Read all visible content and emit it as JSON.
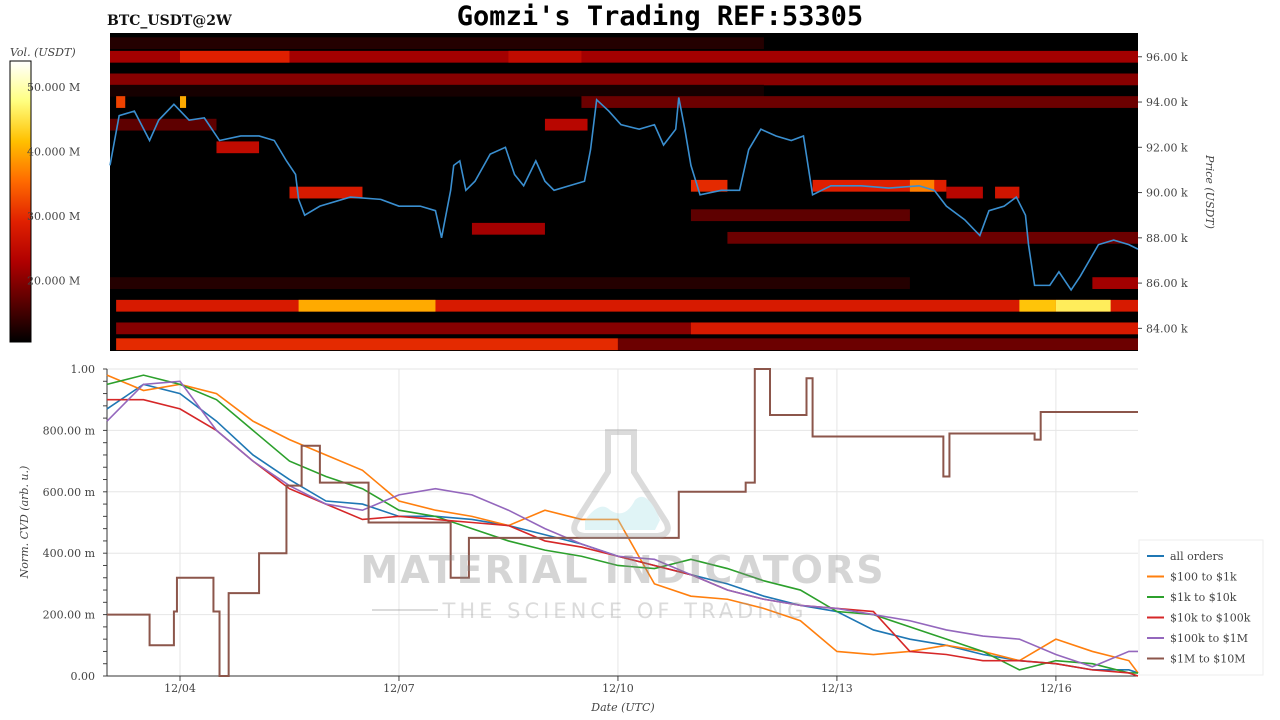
{
  "title": "Gomzi's Trading REF:53305",
  "symbol_label": "BTC_USDT@2W",
  "watermark": {
    "line1": "MATERIAL INDICATORS",
    "line2": "THE SCIENCE OF TRADING"
  },
  "chart_data": [
    {
      "type": "heatmap",
      "name": "orderbook-heatmap",
      "ylabel": "Price (USDT)",
      "ylim": [
        83.0,
        97.05
      ],
      "xlim": [
        "12/03 00:00",
        "12/17 03:00"
      ],
      "yticks": [
        84,
        86,
        88,
        90,
        92,
        94,
        96
      ],
      "ytick_labels": [
        "84.00 k",
        "86.00 k",
        "88.00 k",
        "90.00 k",
        "92.00 k",
        "94.00 k",
        "96.00 k"
      ],
      "background_color": "#000000",
      "colorbar": {
        "label": "Vol. (USDT)",
        "range": [
          10.5,
          54
        ],
        "ticks": [
          20,
          30,
          40,
          50
        ],
        "tick_labels": [
          "20.000 M",
          "30.000 M",
          "40.000 M",
          "50.000 M"
        ],
        "colormap": [
          "#000000",
          "#5a0000",
          "#b00000",
          "#e02000",
          "#ff6a00",
          "#ffc000",
          "#ffff80",
          "#ffffff"
        ]
      },
      "bands_unit": "price in k USDT, volume in M USDT",
      "bands": [
        {
          "price": 96.6,
          "from": "12/03 00:00",
          "to": "12/12 00:00",
          "vol": 13
        },
        {
          "price": 96.0,
          "from": "12/03 00:00",
          "to": "12/17 03:00",
          "vol": 22
        },
        {
          "price": 96.0,
          "from": "12/04 00:00",
          "to": "12/05 12:00",
          "vol": 29
        },
        {
          "price": 96.0,
          "from": "12/08 12:00",
          "to": "12/09 12:00",
          "vol": 25
        },
        {
          "price": 95.0,
          "from": "12/03 00:00",
          "to": "12/17 03:00",
          "vol": 20
        },
        {
          "price": 94.5,
          "from": "12/03 00:00",
          "to": "12/12 00:00",
          "vol": 12
        },
        {
          "price": 94.0,
          "from": "12/09 12:00",
          "to": "12/17 03:00",
          "vol": 18
        },
        {
          "price": 94.0,
          "from": "12/03 03:00",
          "to": "12/03 06:00",
          "vol": 32
        },
        {
          "price": 94.0,
          "from": "12/04 00:00",
          "to": "12/04 02:00",
          "vol": 40
        },
        {
          "price": 93.0,
          "from": "12/03 00:00",
          "to": "12/04 12:00",
          "vol": 17
        },
        {
          "price": 92.0,
          "from": "12/04 12:00",
          "to": "12/05 02:00",
          "vol": 25
        },
        {
          "price": 93.0,
          "from": "12/09 00:00",
          "to": "12/09 14:00",
          "vol": 24
        },
        {
          "price": 90.3,
          "from": "12/11 00:00",
          "to": "12/11 12:00",
          "vol": 30
        },
        {
          "price": 90.3,
          "from": "12/12 16:00",
          "to": "12/14 12:00",
          "vol": 29
        },
        {
          "price": 90.3,
          "from": "12/14 00:00",
          "to": "12/14 08:00",
          "vol": 37
        },
        {
          "price": 90.0,
          "from": "12/05 12:00",
          "to": "12/06 12:00",
          "vol": 28
        },
        {
          "price": 90.0,
          "from": "12/14 12:00",
          "to": "12/15 00:00",
          "vol": 24
        },
        {
          "price": 90.0,
          "from": "12/15 04:00",
          "to": "12/15 12:00",
          "vol": 27
        },
        {
          "price": 89.0,
          "from": "12/11 00:00",
          "to": "12/14 00:00",
          "vol": 17
        },
        {
          "price": 88.4,
          "from": "12/08 00:00",
          "to": "12/09 00:00",
          "vol": 22
        },
        {
          "price": 88.0,
          "from": "12/11 12:00",
          "to": "12/17 03:00",
          "vol": 18
        },
        {
          "price": 86.0,
          "from": "12/03 00:00",
          "to": "12/14 00:00",
          "vol": 13
        },
        {
          "price": 86.0,
          "from": "12/16 12:00",
          "to": "12/17 03:00",
          "vol": 22
        },
        {
          "price": 85.0,
          "from": "12/03 03:00",
          "to": "12/17 03:00",
          "vol": 28
        },
        {
          "price": 85.0,
          "from": "12/05 15:00",
          "to": "12/07 12:00",
          "vol": 40
        },
        {
          "price": 85.0,
          "from": "12/15 12:00",
          "to": "12/16 00:00",
          "vol": 42
        },
        {
          "price": 85.0,
          "from": "12/16 00:00",
          "to": "12/16 18:00",
          "vol": 46
        },
        {
          "price": 84.0,
          "from": "12/03 03:00",
          "to": "12/17 03:00",
          "vol": 20
        },
        {
          "price": 84.0,
          "from": "12/11 00:00",
          "to": "12/17 03:00",
          "vol": 28
        },
        {
          "price": 83.3,
          "from": "12/03 03:00",
          "to": "12/10 00:00",
          "vol": 30
        },
        {
          "price": 83.3,
          "from": "12/10 00:00",
          "to": "12/17 03:00",
          "vol": 18
        }
      ],
      "price_series": {
        "color": "#3a8fd0",
        "points": [
          [
            "12/03 00:00",
            91.2
          ],
          [
            "12/03 04:00",
            93.4
          ],
          [
            "12/03 09:00",
            93.6
          ],
          [
            "12/03 14:00",
            92.3
          ],
          [
            "12/03 17:00",
            93.2
          ],
          [
            "12/03 22:00",
            93.9
          ],
          [
            "12/04 03:00",
            93.2
          ],
          [
            "12/04 08:00",
            93.3
          ],
          [
            "12/04 13:00",
            92.3
          ],
          [
            "12/04 20:00",
            92.5
          ],
          [
            "12/05 02:00",
            92.5
          ],
          [
            "12/05 07:00",
            92.3
          ],
          [
            "12/05 11:00",
            91.4
          ],
          [
            "12/05 14:00",
            90.8
          ],
          [
            "12/05 15:00",
            89.7
          ],
          [
            "12/05 17:00",
            89.0
          ],
          [
            "12/05 22:00",
            89.4
          ],
          [
            "12/06 08:00",
            89.8
          ],
          [
            "12/06 18:00",
            89.7
          ],
          [
            "12/07 00:00",
            89.4
          ],
          [
            "12/07 07:00",
            89.4
          ],
          [
            "12/07 12:00",
            89.2
          ],
          [
            "12/07 14:00",
            88.0
          ],
          [
            "12/07 17:00",
            90.1
          ],
          [
            "12/07 18:00",
            91.2
          ],
          [
            "12/07 20:00",
            91.4
          ],
          [
            "12/07 22:00",
            90.1
          ],
          [
            "12/08 01:00",
            90.5
          ],
          [
            "12/08 06:00",
            91.7
          ],
          [
            "12/08 11:00",
            92.0
          ],
          [
            "12/08 14:00",
            90.8
          ],
          [
            "12/08 17:00",
            90.3
          ],
          [
            "12/08 21:00",
            91.4
          ],
          [
            "12/09 00:00",
            90.5
          ],
          [
            "12/09 03:00",
            90.1
          ],
          [
            "12/09 08:00",
            90.3
          ],
          [
            "12/09 13:00",
            90.5
          ],
          [
            "12/09 15:00",
            91.9
          ],
          [
            "12/09 17:00",
            94.1
          ],
          [
            "12/09 21:00",
            93.6
          ],
          [
            "12/10 01:00",
            93.0
          ],
          [
            "12/10 07:00",
            92.8
          ],
          [
            "12/10 12:00",
            93.0
          ],
          [
            "12/10 15:00",
            92.1
          ],
          [
            "12/10 19:00",
            92.8
          ],
          [
            "12/10 20:00",
            94.2
          ],
          [
            "12/10 22:00",
            92.8
          ],
          [
            "12/11 00:00",
            91.2
          ],
          [
            "12/11 03:00",
            89.9
          ],
          [
            "12/11 10:00",
            90.1
          ],
          [
            "12/11 16:00",
            90.1
          ],
          [
            "12/11 19:00",
            91.9
          ],
          [
            "12/11 23:00",
            92.8
          ],
          [
            "12/12 04:00",
            92.5
          ],
          [
            "12/12 09:00",
            92.3
          ],
          [
            "12/12 13:00",
            92.5
          ],
          [
            "12/12 16:00",
            89.9
          ],
          [
            "12/12 22:00",
            90.3
          ],
          [
            "12/13 08:00",
            90.3
          ],
          [
            "12/13 17:00",
            90.2
          ],
          [
            "12/14 03:00",
            90.3
          ],
          [
            "12/14 08:00",
            90.1
          ],
          [
            "12/14 12:00",
            89.4
          ],
          [
            "12/14 18:00",
            88.8
          ],
          [
            "12/14 23:00",
            88.1
          ],
          [
            "12/15 02:00",
            89.2
          ],
          [
            "12/15 07:00",
            89.4
          ],
          [
            "12/15 11:00",
            89.8
          ],
          [
            "12/15 14:00",
            89.0
          ],
          [
            "12/15 15:00",
            87.7
          ],
          [
            "12/15 17:00",
            85.9
          ],
          [
            "12/15 22:00",
            85.9
          ],
          [
            "12/16 01:00",
            86.5
          ],
          [
            "12/16 05:00",
            85.7
          ],
          [
            "12/16 08:00",
            86.3
          ],
          [
            "12/16 11:00",
            87.0
          ],
          [
            "12/16 14:00",
            87.7
          ],
          [
            "12/16 19:00",
            87.9
          ],
          [
            "12/17 00:00",
            87.7
          ],
          [
            "12/17 03:00",
            87.5
          ]
        ]
      }
    },
    {
      "type": "line",
      "name": "cvd-chart",
      "xlabel": "Date (UTC)",
      "ylabel": "Norm. CVD (arb. u.)",
      "ylim": [
        0,
        1
      ],
      "xlim": [
        "12/03 00:00",
        "12/17 03:00"
      ],
      "grid": true,
      "legend_position": "right",
      "xticks": [
        "12/04 00:00",
        "12/07 00:00",
        "12/10 00:00",
        "12/13 00:00",
        "12/16 00:00"
      ],
      "xtick_labels": [
        "12/04",
        "12/07",
        "12/10",
        "12/13",
        "12/16"
      ],
      "yticks": [
        0,
        0.2,
        0.4,
        0.6,
        0.8,
        1.0
      ],
      "ytick_labels": [
        "0.00",
        "200.00 m",
        "400.00 m",
        "600.00 m",
        "800.00 m",
        "1.00"
      ],
      "x": [
        "12/03 00:00",
        "12/03 12:00",
        "12/04 00:00",
        "12/04 12:00",
        "12/05 00:00",
        "12/05 12:00",
        "12/06 00:00",
        "12/06 12:00",
        "12/07 00:00",
        "12/07 12:00",
        "12/08 00:00",
        "12/08 12:00",
        "12/09 00:00",
        "12/09 12:00",
        "12/10 00:00",
        "12/10 12:00",
        "12/11 00:00",
        "12/11 12:00",
        "12/12 00:00",
        "12/12 12:00",
        "12/13 00:00",
        "12/13 12:00",
        "12/14 00:00",
        "12/14 12:00",
        "12/15 00:00",
        "12/15 12:00",
        "12/16 00:00",
        "12/16 12:00",
        "12/17 00:00",
        "12/17 03:00"
      ],
      "series": [
        {
          "name": "all orders",
          "color": "#1f77b4",
          "values": [
            0.87,
            0.95,
            0.92,
            0.83,
            0.72,
            0.64,
            0.57,
            0.56,
            0.52,
            0.52,
            0.51,
            0.49,
            0.46,
            0.43,
            0.39,
            0.36,
            0.33,
            0.3,
            0.26,
            0.23,
            0.21,
            0.15,
            0.12,
            0.1,
            0.07,
            0.05,
            0.04,
            0.02,
            0.02,
            0.01
          ]
        },
        {
          "name": "$100 to $1k",
          "color": "#ff7f0e",
          "values": [
            0.98,
            0.93,
            0.95,
            0.92,
            0.83,
            0.77,
            0.72,
            0.67,
            0.57,
            0.54,
            0.52,
            0.49,
            0.54,
            0.51,
            0.51,
            0.3,
            0.26,
            0.25,
            0.22,
            0.18,
            0.08,
            0.07,
            0.08,
            0.1,
            0.08,
            0.05,
            0.12,
            0.08,
            0.05,
            0.01
          ]
        },
        {
          "name": "$1k to $10k",
          "color": "#2ca02c",
          "values": [
            0.95,
            0.98,
            0.95,
            0.9,
            0.8,
            0.7,
            0.65,
            0.61,
            0.54,
            0.52,
            0.48,
            0.44,
            0.41,
            0.39,
            0.36,
            0.35,
            0.38,
            0.35,
            0.31,
            0.28,
            0.21,
            0.2,
            0.16,
            0.12,
            0.08,
            0.02,
            0.05,
            0.04,
            0.01,
            0.01
          ]
        },
        {
          "name": "$10k to $100k",
          "color": "#d62728",
          "values": [
            0.9,
            0.9,
            0.87,
            0.8,
            0.7,
            0.61,
            0.56,
            0.51,
            0.52,
            0.51,
            0.5,
            0.49,
            0.44,
            0.42,
            0.39,
            0.36,
            0.33,
            0.28,
            0.25,
            0.23,
            0.22,
            0.21,
            0.08,
            0.07,
            0.05,
            0.05,
            0.04,
            0.02,
            0.01,
            0.0
          ]
        },
        {
          "name": "$100k to $1M",
          "color": "#9467bd",
          "values": [
            0.83,
            0.95,
            0.96,
            0.8,
            0.7,
            0.62,
            0.56,
            0.54,
            0.59,
            0.61,
            0.59,
            0.54,
            0.48,
            0.43,
            0.39,
            0.38,
            0.33,
            0.28,
            0.25,
            0.23,
            0.22,
            0.2,
            0.18,
            0.15,
            0.13,
            0.12,
            0.07,
            0.03,
            0.08,
            0.08
          ]
        },
        {
          "name": "$1M to $10M",
          "color": "#8c564b",
          "step": true,
          "steps": [
            [
              "12/03 00:00",
              0.2
            ],
            [
              "12/03 14:00",
              0.1
            ],
            [
              "12/03 22:00",
              0.21
            ],
            [
              "12/03 23:00",
              0.32
            ],
            [
              "12/04 11:00",
              0.21
            ],
            [
              "12/04 13:00",
              0.0
            ],
            [
              "12/04 16:00",
              0.27
            ],
            [
              "12/05 02:00",
              0.4
            ],
            [
              "12/05 11:00",
              0.62
            ],
            [
              "12/05 16:00",
              0.75
            ],
            [
              "12/05 22:00",
              0.63
            ],
            [
              "12/06 14:00",
              0.5
            ],
            [
              "12/07 17:00",
              0.32
            ],
            [
              "12/07 23:00",
              0.45
            ],
            [
              "12/10 20:00",
              0.6
            ],
            [
              "12/11 18:00",
              0.63
            ],
            [
              "12/11 21:00",
              1.0
            ],
            [
              "12/12 02:00",
              0.85
            ],
            [
              "12/12 14:00",
              0.97
            ],
            [
              "12/12 16:00",
              0.78
            ],
            [
              "12/14 11:00",
              0.65
            ],
            [
              "12/14 13:00",
              0.79
            ],
            [
              "12/15 17:00",
              0.77
            ],
            [
              "12/15 19:00",
              0.86
            ],
            [
              "12/17 03:00",
              0.86
            ]
          ]
        }
      ]
    }
  ]
}
